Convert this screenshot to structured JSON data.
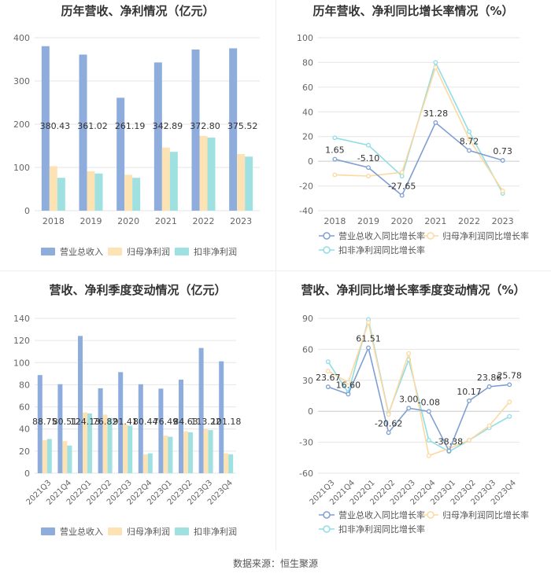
{
  "source": "数据来源：恒生聚源",
  "colors": {
    "revenue": "#8eacdc",
    "net_profit": "#fde2b3",
    "deducted_profit": "#9fe0e0",
    "revenue_line": "#7f9fd3",
    "net_line": "#fcd9a0",
    "deducted_line": "#8fdde6",
    "grid": "#e6e6e6",
    "axis_text": "#666666"
  },
  "chart_data": [
    {
      "id": "annual_bar",
      "type": "bar",
      "title": "历年营收、净利情况（亿元）",
      "categories": [
        "2018",
        "2019",
        "2020",
        "2021",
        "2022",
        "2023"
      ],
      "series": [
        {
          "name": "营业总收入",
          "values": [
            380.43,
            361.02,
            261.19,
            342.89,
            372.8,
            375.52
          ]
        },
        {
          "name": "归母净利润",
          "values": [
            103,
            91,
            83,
            146,
            173,
            131
          ]
        },
        {
          "name": "扣非净利润",
          "values": [
            76,
            86,
            76,
            136,
            169,
            125
          ]
        }
      ],
      "labels": [
        "380.43",
        "361.02",
        "261.19",
        "342.89",
        "372.80",
        "375.52"
      ],
      "ylim": [
        0,
        400
      ],
      "yticks": [
        "0",
        "100",
        "200",
        "300",
        "400"
      ],
      "legend": "bottom"
    },
    {
      "id": "annual_line",
      "type": "line",
      "title": "历年营收、净利同比增长率情况（%）",
      "categories": [
        "2018",
        "2019",
        "2020",
        "2021",
        "2022",
        "2023"
      ],
      "series": [
        {
          "name": "营业总收入同比增长率",
          "values": [
            1.65,
            -5.1,
            -27.65,
            31.28,
            8.72,
            0.73
          ]
        },
        {
          "name": "归母净利润同比增长率",
          "values": [
            -11,
            -12,
            -9,
            76,
            18,
            -24
          ]
        },
        {
          "name": "扣非净利润同比增长率",
          "values": [
            19,
            13,
            -12,
            80,
            24,
            -26
          ]
        }
      ],
      "labels": [
        "1.65",
        "-5.10",
        "-27.65",
        "31.28",
        "8.72",
        "0.73"
      ],
      "ylim": [
        -40,
        100
      ],
      "yticks": [
        "-40",
        "-20",
        "0",
        "20",
        "40",
        "60",
        "80",
        "100"
      ],
      "legend": "bottom"
    },
    {
      "id": "quarter_bar",
      "type": "bar",
      "title": "营收、净利季度变动情况（亿元）",
      "categories": [
        "2021Q3",
        "2021Q4",
        "2022Q1",
        "2022Q2",
        "2022Q3",
        "2022Q4",
        "2023Q1",
        "2023Q2",
        "2023Q3",
        "2023Q4"
      ],
      "series": [
        {
          "name": "营业总收入",
          "values": [
            88.75,
            80.51,
            124.13,
            76.82,
            91.41,
            80.44,
            76.49,
            84.63,
            113.22,
            101.18
          ]
        },
        {
          "name": "归母净利润",
          "values": [
            30,
            29,
            55,
            53,
            44,
            17,
            34,
            38,
            40,
            18
          ]
        },
        {
          "name": "扣非净利润",
          "values": [
            31,
            25,
            54,
            50,
            43,
            18,
            33,
            37,
            39,
            17
          ]
        }
      ],
      "labels": [
        "88.75",
        "80.51",
        "124.13",
        "76.82",
        "91.41",
        "80.44",
        "76.49",
        "84.63",
        "113.22",
        "101.18"
      ],
      "ylim": [
        0,
        140
      ],
      "yticks": [
        "0",
        "20",
        "40",
        "60",
        "80",
        "100",
        "120",
        "140"
      ],
      "legend": "bottom"
    },
    {
      "id": "quarter_line",
      "type": "line",
      "title": "营收、净利同比增长率季度变动情况（%）",
      "categories": [
        "2021Q3",
        "2021Q4",
        "2022Q1",
        "2022Q2",
        "2022Q3",
        "2022Q4",
        "2023Q1",
        "2023Q2",
        "2023Q3",
        "2023Q4"
      ],
      "series": [
        {
          "name": "营业总收入同比增长率",
          "values": [
            23.67,
            16.6,
            61.51,
            -20.62,
            3.0,
            -0.08,
            -38.38,
            10.17,
            23.86,
            25.78
          ]
        },
        {
          "name": "归母净利润同比增长率",
          "values": [
            39,
            28,
            86,
            -3,
            56,
            -43,
            -36,
            -28,
            -14,
            9
          ]
        },
        {
          "name": "扣非净利润同比增长率",
          "values": [
            48,
            18,
            89,
            -2,
            50,
            -28,
            -39,
            -28,
            -16,
            -5
          ]
        }
      ],
      "labels": [
        "23.67",
        "16.60",
        "61.51",
        "-20.62",
        "3.00",
        "-0.08",
        "-38.38",
        "10.17",
        "23.86",
        "25.78"
      ],
      "ylim": [
        -60,
        90
      ],
      "yticks": [
        "-60",
        "-30",
        "0",
        "30",
        "60",
        "90"
      ],
      "legend": "bottom"
    }
  ]
}
